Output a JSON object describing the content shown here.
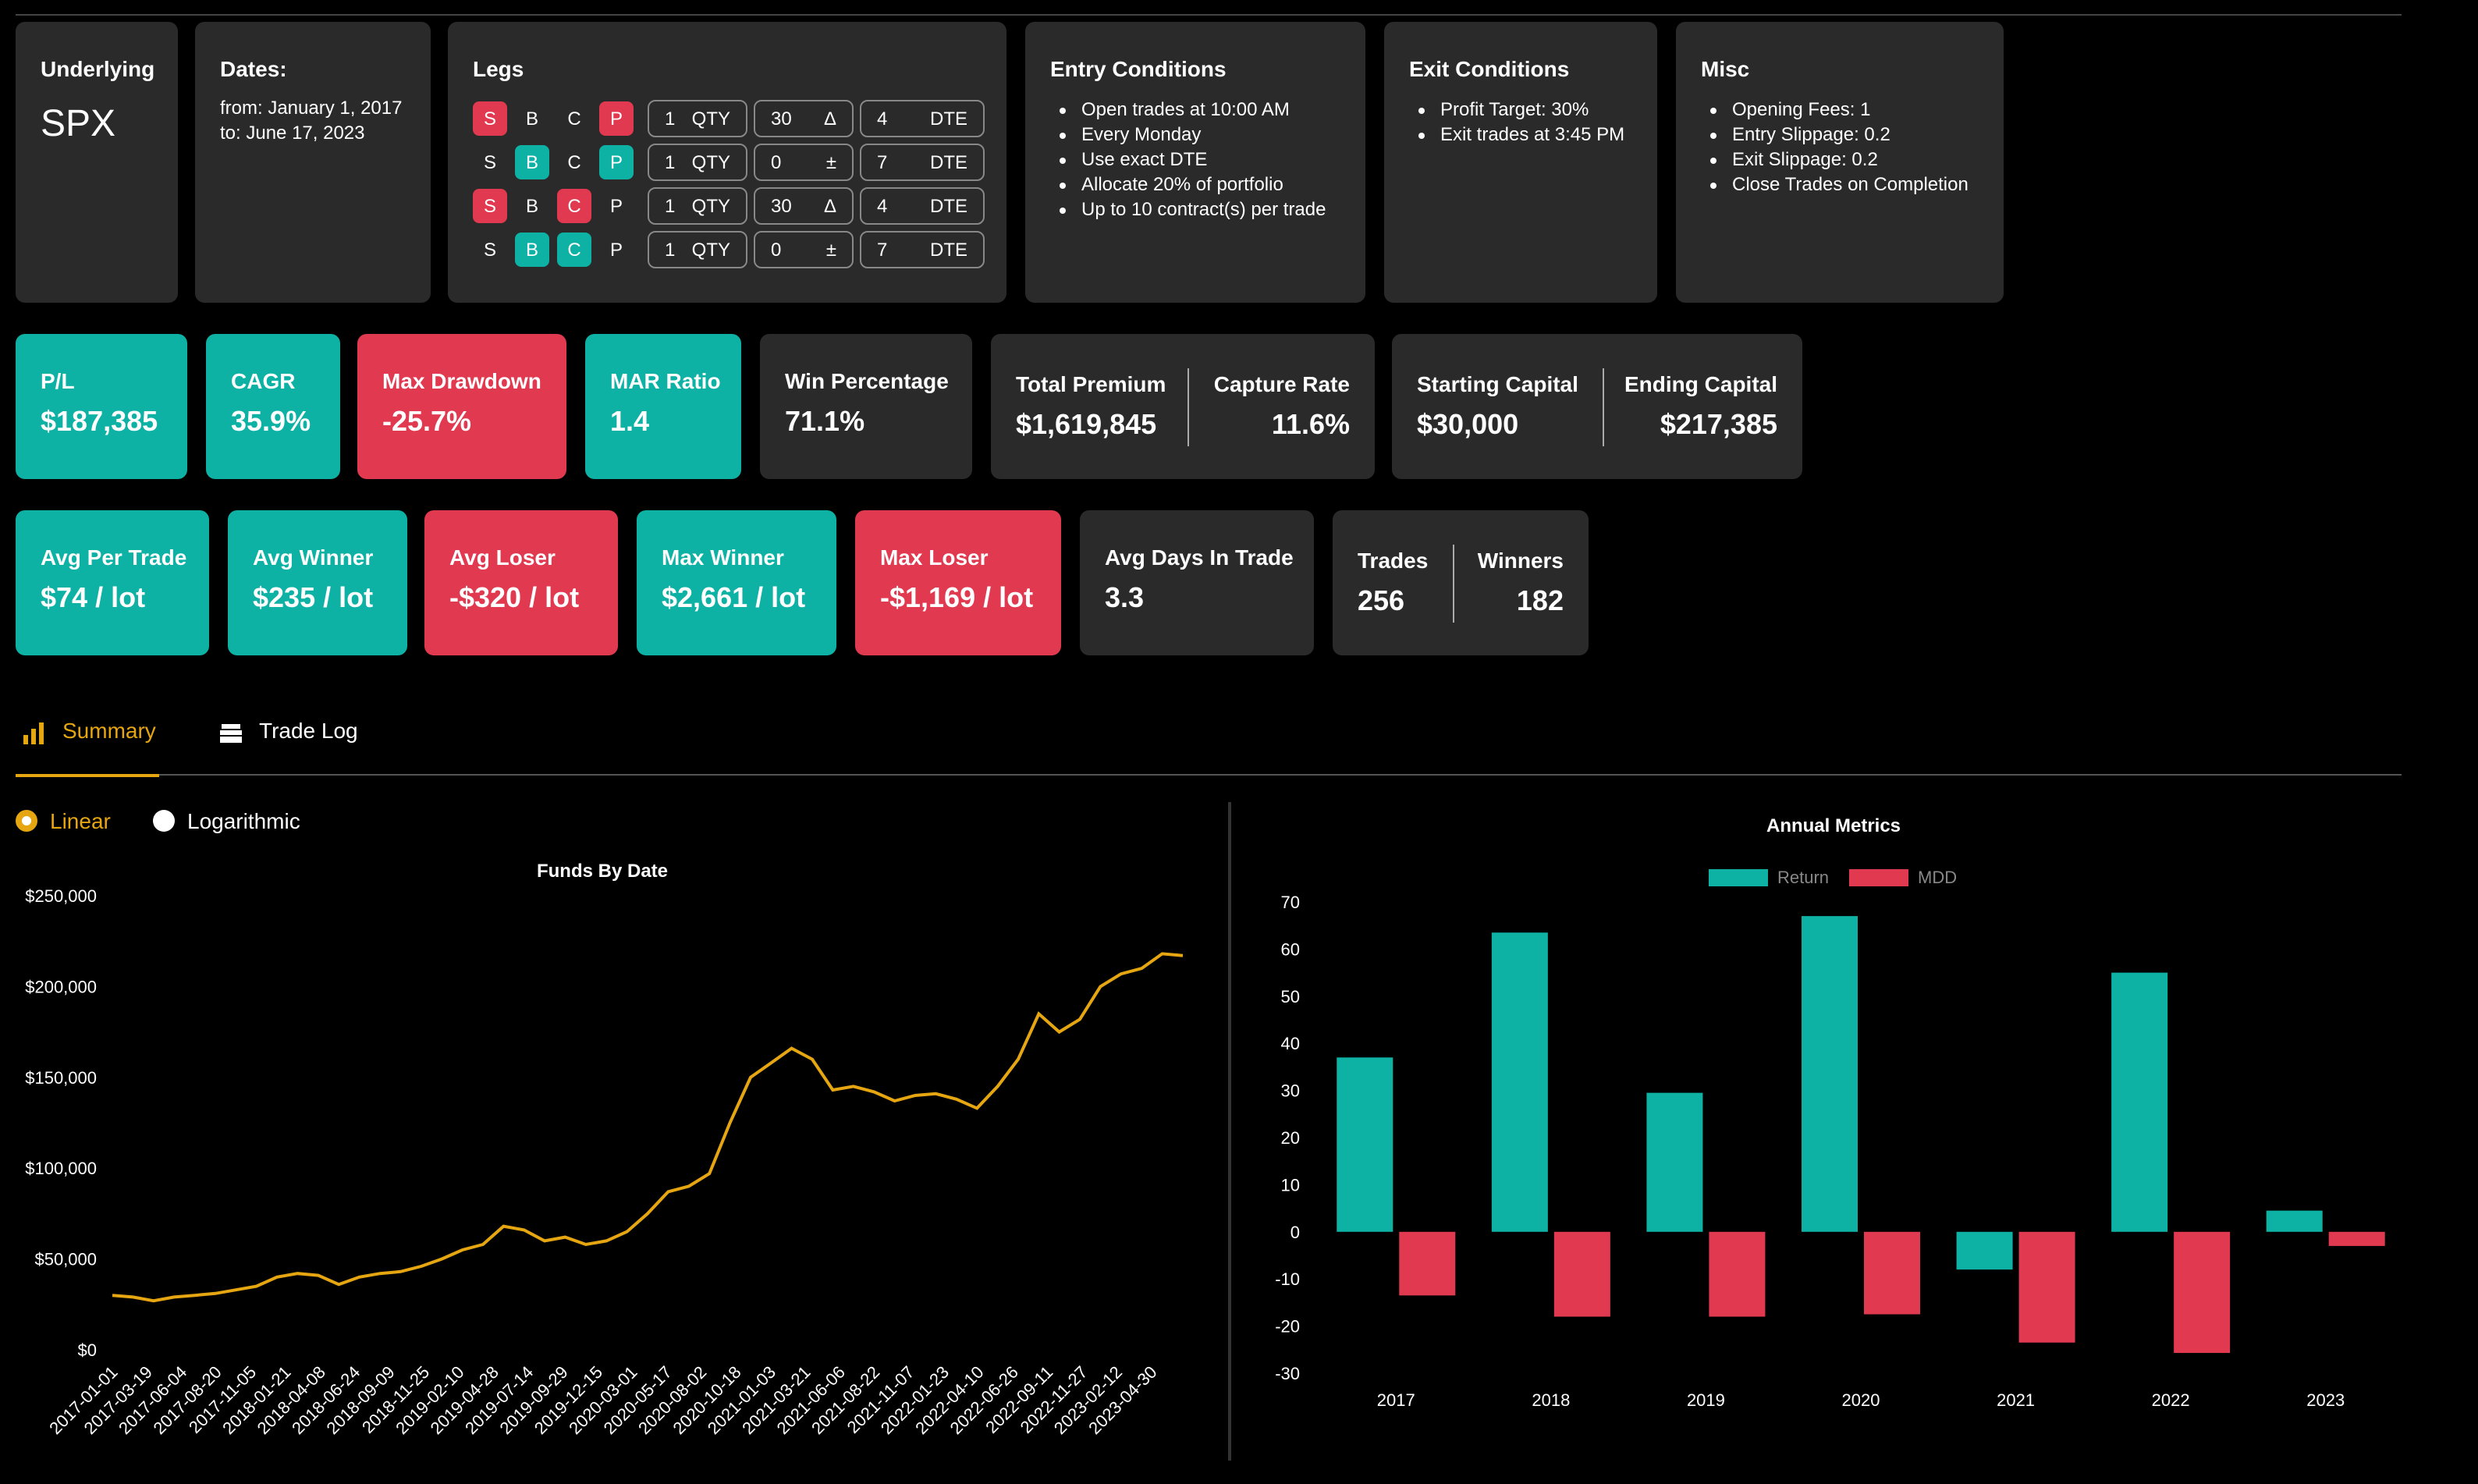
{
  "underlying": {
    "label": "Underlying",
    "value": "SPX"
  },
  "dates": {
    "label": "Dates:",
    "from": "from: January 1, 2017",
    "to": "to: June 17, 2023"
  },
  "legs": {
    "label": "Legs",
    "rows": [
      {
        "side": "S",
        "type": "B",
        "c": "C",
        "p": "P",
        "qty": "1",
        "qty_unit": "QTY",
        "delta": "30",
        "delta_sym": "Δ",
        "dte": "4",
        "dte_unit": "DTE"
      },
      {
        "side": "S",
        "type": "B",
        "c": "C",
        "p": "P",
        "qty": "1",
        "qty_unit": "QTY",
        "delta": "0",
        "delta_sym": "±",
        "dte": "7",
        "dte_unit": "DTE"
      },
      {
        "side": "S",
        "type": "B",
        "c": "C",
        "p": "P",
        "qty": "1",
        "qty_unit": "QTY",
        "delta": "30",
        "delta_sym": "Δ",
        "dte": "4",
        "dte_unit": "DTE"
      },
      {
        "side": "S",
        "type": "B",
        "c": "C",
        "p": "P",
        "qty": "1",
        "qty_unit": "QTY",
        "delta": "0",
        "delta_sym": "±",
        "dte": "7",
        "dte_unit": "DTE"
      }
    ]
  },
  "entry": {
    "label": "Entry Conditions",
    "items": [
      "Open trades at 10:00 AM",
      "Every Monday",
      "Use exact DTE",
      "Allocate 20% of portfolio",
      "Up to 10 contract(s) per trade"
    ]
  },
  "exit": {
    "label": "Exit Conditions",
    "items": [
      "Profit Target: 30%",
      "Exit trades at 3:45 PM"
    ]
  },
  "misc": {
    "label": "Misc",
    "items": [
      "Opening Fees: 1",
      "Entry Slippage: 0.2",
      "Exit Slippage: 0.2",
      "Close Trades on Completion"
    ]
  },
  "stats1": {
    "pl": {
      "label": "P/L",
      "value": "$187,385"
    },
    "cagr": {
      "label": "CAGR",
      "value": "35.9%"
    },
    "maxdd": {
      "label": "Max Drawdown",
      "value": "-25.7%"
    },
    "mar": {
      "label": "MAR Ratio",
      "value": "1.4"
    },
    "win": {
      "label": "Win Percentage",
      "value": "71.1%"
    },
    "premium": {
      "label": "Total Premium",
      "value": "$1,619,845",
      "label2": "Capture Rate",
      "value2": "11.6%"
    },
    "capital": {
      "label": "Starting Capital",
      "value": "$30,000",
      "label2": "Ending Capital",
      "value2": "$217,385"
    }
  },
  "stats2": {
    "avg": {
      "label": "Avg Per Trade",
      "value": "$74 / lot"
    },
    "avgwin": {
      "label": "Avg Winner",
      "value": "$235 / lot"
    },
    "avglose": {
      "label": "Avg Loser",
      "value": "-$320 / lot"
    },
    "maxwin": {
      "label": "Max Winner",
      "value": "$2,661 / lot"
    },
    "maxlose": {
      "label": "Max Loser",
      "value": "-$1,169 / lot"
    },
    "days": {
      "label": "Avg Days In Trade",
      "value": "3.3"
    },
    "trades": {
      "label": "Trades",
      "value": "256",
      "label2": "Winners",
      "value2": "182"
    }
  },
  "tabs": {
    "summary": "Summary",
    "tradelog": "Trade Log",
    "summary_icon": "bar-chart-icon",
    "tradelog_icon": "stack-icon"
  },
  "scale": {
    "linear": "Linear",
    "log": "Logarithmic",
    "selected": "Linear"
  },
  "colors": {
    "teal": "#0db2a5",
    "red": "#e03950",
    "line": "#e6a611",
    "card": "#2a2a2a"
  },
  "chart_data": [
    {
      "type": "line",
      "title": "Funds By Date",
      "ylim": [
        0,
        250000
      ],
      "yticks": [
        "$0",
        "$50,000",
        "$100,000",
        "$150,000",
        "$200,000",
        "$250,000"
      ],
      "xticks": [
        "2017-01-01",
        "2017-03-19",
        "2017-06-04",
        "2017-08-20",
        "2017-11-05",
        "2018-01-21",
        "2018-04-08",
        "2018-06-24",
        "2018-09-09",
        "2018-11-25",
        "2019-02-10",
        "2019-04-28",
        "2019-07-14",
        "2019-09-29",
        "2019-12-15",
        "2020-03-01",
        "2020-05-17",
        "2020-08-02",
        "2020-10-18",
        "2021-01-03",
        "2021-03-21",
        "2021-06-06",
        "2021-08-22",
        "2021-11-07",
        "2022-01-23",
        "2022-04-10",
        "2022-06-26",
        "2022-09-11",
        "2022-11-27",
        "2023-02-12",
        "2023-04-30"
      ],
      "series": [
        {
          "values": [
            30000,
            29000,
            27000,
            29000,
            30000,
            31000,
            33000,
            35000,
            40000,
            42000,
            41000,
            36000,
            40000,
            42000,
            43000,
            46000,
            50000,
            55000,
            58000,
            68000,
            66000,
            60000,
            62000,
            58000,
            60000,
            65000,
            75000,
            87000,
            90000,
            97000,
            125000,
            150000,
            158000,
            166000,
            160000,
            143000,
            145000,
            142000,
            137000,
            140000,
            141000,
            138000,
            133000,
            145000,
            160000,
            185000,
            175000,
            182000,
            200000,
            207000,
            210000,
            218000,
            217000
          ]
        }
      ]
    },
    {
      "type": "bar",
      "title": "Annual Metrics",
      "legend": "top-center",
      "categories": [
        "2017",
        "2018",
        "2019",
        "2020",
        "2021",
        "2022",
        "2023"
      ],
      "ylim": [
        -30,
        70
      ],
      "yticks": [
        -30,
        -20,
        -10,
        0,
        10,
        20,
        30,
        40,
        50,
        60,
        70
      ],
      "series": [
        {
          "name": "Return",
          "values": [
            37,
            63.5,
            29.5,
            67,
            -8,
            55,
            4.5
          ]
        },
        {
          "name": "MDD",
          "values": [
            -13.5,
            -18,
            -18,
            -17.5,
            -23.5,
            -25.7,
            -3
          ]
        }
      ]
    }
  ]
}
